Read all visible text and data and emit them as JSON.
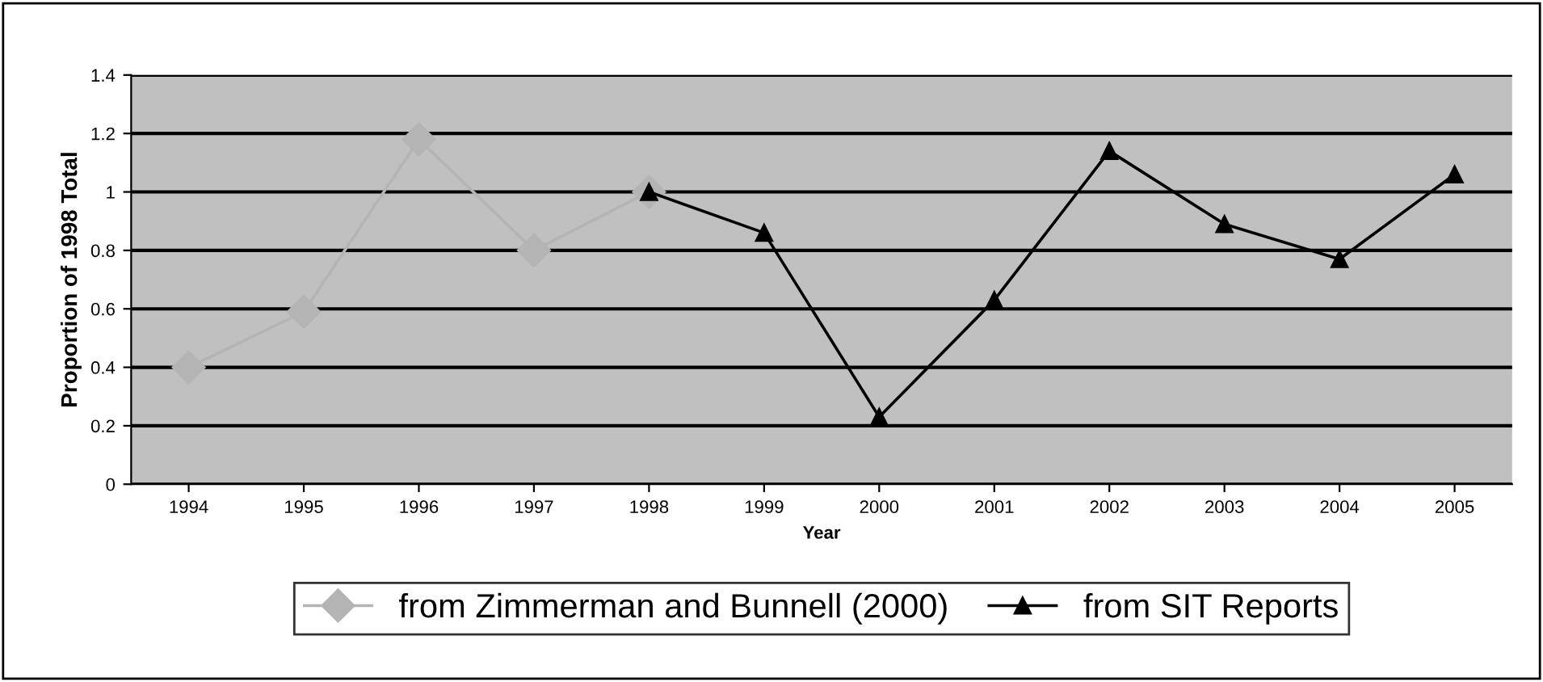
{
  "chart_data": {
    "type": "line",
    "xlabel": "Year",
    "ylabel": "Proportion of 1998 Total",
    "categories": [
      "1994",
      "1995",
      "1996",
      "1997",
      "1998",
      "1999",
      "2000",
      "2001",
      "2002",
      "2003",
      "2004",
      "2005"
    ],
    "series": [
      {
        "name": "from Zimmerman and Bunnell (2000)",
        "color": "#b4b4b4",
        "marker": "diamond",
        "values": [
          0.4,
          0.59,
          1.18,
          0.8,
          1.0,
          null,
          null,
          null,
          null,
          null,
          null,
          null
        ]
      },
      {
        "name": "from SIT Reports",
        "color": "#000000",
        "marker": "triangle",
        "values": [
          null,
          null,
          null,
          null,
          1.0,
          0.86,
          0.23,
          0.63,
          1.14,
          0.89,
          0.77,
          1.06
        ]
      }
    ],
    "ylim": [
      0,
      1.4
    ],
    "yticks": [
      0,
      0.2,
      0.4,
      0.6,
      0.8,
      1,
      1.2,
      1.4
    ],
    "grid": "y",
    "legend": "bottom",
    "line_style": "solid"
  }
}
